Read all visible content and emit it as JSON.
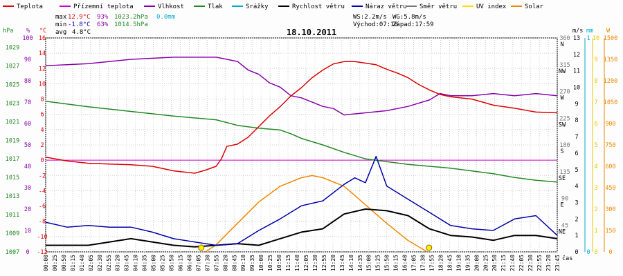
{
  "chart_data": {
    "type": "line",
    "title": "18.10.2011",
    "xlabel": "čas",
    "legend": [
      {
        "name": "Teplota",
        "color": "#dd0000"
      },
      {
        "name": "Přízemní teplota",
        "color": "#cc00cc"
      },
      {
        "name": "Vlhkost",
        "color": "#8800aa"
      },
      {
        "name": "Tlak",
        "color": "#228822"
      },
      {
        "name": "Srážky",
        "color": "#00aacc"
      },
      {
        "name": "Rychlost větru",
        "color": "#000000"
      },
      {
        "name": "Náraz větru",
        "color": "#0000aa"
      },
      {
        "name": "Směr větru",
        "color": "#777777"
      },
      {
        "name": "UV index",
        "color": "#ffdd00"
      },
      {
        "name": "Solar",
        "color": "#ee8800"
      }
    ],
    "stats": {
      "max": {
        "label": "max",
        "temp": "12.9°C",
        "hum": "93%",
        "press": "1023.2hPa",
        "rain": "0.0mm"
      },
      "min": {
        "label": "min",
        "temp": "-1.8°C",
        "hum": "63%",
        "press": "1014.5hPa"
      },
      "avg": {
        "label": "avg",
        "temp": "4.8°C"
      }
    },
    "wind_stats": {
      "ws": "WS:2.2m/s",
      "wg": "WG:5.8m/s",
      "sunrise": "Východ:07:18",
      "sunset": "Západ:17:59"
    },
    "axes": {
      "hPa": {
        "unit": "hPa",
        "ticks": [
          "1029",
          "1027",
          "1025",
          "1023",
          "1021",
          "1019",
          "1017",
          "1015",
          "1013",
          "1011",
          "1009",
          "1007"
        ],
        "range": [
          1007,
          1030
        ]
      },
      "pct": {
        "unit": "%",
        "ticks": [
          "100",
          "90",
          "80",
          "70",
          "60",
          "50",
          "40",
          "30",
          "20",
          "10",
          "0"
        ],
        "range": [
          0,
          100
        ]
      },
      "degC": {
        "unit": "°C",
        "ticks": [
          "16",
          "14",
          "12",
          "10",
          "8",
          "6",
          "4",
          "2",
          "0",
          "-2",
          "-4",
          "-6",
          "-8",
          "-10",
          "-12"
        ],
        "range": [
          -12,
          16
        ]
      },
      "dir": {
        "ticks": [
          "360",
          "315",
          "270",
          "225",
          "180",
          "135",
          "90",
          "45"
        ],
        "labels": [
          "N",
          "NW",
          "W",
          "SW",
          "S",
          "SE",
          "E",
          "NE"
        ],
        "range": [
          0,
          360
        ]
      },
      "ms": {
        "unit": "m/s",
        "ticks": [
          "13",
          "12",
          "11",
          "10",
          "9",
          "8",
          "7",
          "6",
          "5",
          "4",
          "3",
          "2",
          "1",
          "0"
        ],
        "range": [
          0,
          13
        ]
      },
      "mm": {
        "unit": "mm",
        "ticks": [
          "1",
          "0"
        ],
        "range": [
          0,
          1
        ]
      },
      "uv": {
        "ticks": [
          "10",
          "9",
          "8",
          "7",
          "6",
          "5",
          "4",
          "3",
          "2",
          "1",
          "0"
        ],
        "range": [
          0,
          10
        ]
      },
      "W": {
        "unit": "W",
        "ticks": [
          "1500",
          "1350",
          "1200",
          "1050",
          "900",
          "750",
          "600",
          "450",
          "300",
          "150",
          "0"
        ],
        "range": [
          0,
          1500
        ]
      }
    },
    "time_labels": [
      "00:00",
      "00:25",
      "00:50",
      "01:15",
      "01:40",
      "02:05",
      "02:30",
      "02:55",
      "03:20",
      "03:45",
      "04:10",
      "04:35",
      "05:00",
      "05:25",
      "05:50",
      "06:15",
      "06:40",
      "07:05",
      "07:30",
      "07:55",
      "08:20",
      "08:45",
      "09:10",
      "09:35",
      "10:00",
      "10:25",
      "10:50",
      "11:15",
      "11:40",
      "12:05",
      "12:30",
      "12:55",
      "13:20",
      "13:45",
      "14:10",
      "14:35",
      "15:00",
      "15:25",
      "15:50",
      "16:15",
      "16:40",
      "17:05",
      "17:30",
      "17:55",
      "18:20",
      "18:45",
      "19:10",
      "19:35",
      "20:00",
      "20:25",
      "20:50",
      "21:15",
      "21:40",
      "22:05",
      "22:30",
      "22:55",
      "23:20",
      "23:45"
    ],
    "series": [
      {
        "name": "Teplota",
        "unit": "°C",
        "x": [
          0,
          1,
          2,
          3,
          4,
          5,
          6,
          7,
          7.5,
          8,
          8.25,
          8.5,
          9,
          9.5,
          10,
          10.5,
          11,
          11.5,
          12,
          12.5,
          13,
          13.5,
          14,
          14.5,
          15,
          15.5,
          16,
          16.5,
          17,
          17.5,
          18,
          18.5,
          19,
          20,
          21,
          22,
          23,
          24
        ],
        "values": [
          0.4,
          -0.1,
          -0.4,
          -0.5,
          -0.6,
          -0.8,
          -1.4,
          -1.7,
          -1.3,
          -0.8,
          0.2,
          1.8,
          2.1,
          3.0,
          4.4,
          5.8,
          7.0,
          8.4,
          9.5,
          10.8,
          11.8,
          12.6,
          12.9,
          12.9,
          12.7,
          12.5,
          11.9,
          11.4,
          10.8,
          9.9,
          9.2,
          8.6,
          8.3,
          8.0,
          7.2,
          6.8,
          6.3,
          6.2
        ]
      },
      {
        "name": "Přízemní teplota",
        "unit": "°C",
        "x": [
          0,
          24
        ],
        "values": [
          0,
          0
        ]
      },
      {
        "name": "Vlhkost",
        "unit": "%",
        "x": [
          0,
          2,
          4,
          6,
          7,
          8,
          9,
          9.5,
          10,
          10.5,
          11,
          11.5,
          12,
          13,
          13.5,
          14,
          15,
          16,
          17,
          18,
          18.5,
          19,
          20,
          21,
          22,
          23,
          24
        ],
        "values": [
          87,
          88,
          90,
          91,
          91,
          91,
          89,
          85,
          83,
          79,
          77,
          73,
          72,
          68,
          67,
          64,
          65,
          66,
          68,
          71,
          74,
          73,
          73,
          74,
          73,
          74,
          73
        ]
      },
      {
        "name": "Tlak",
        "unit": "hPa",
        "x": [
          0,
          2,
          4,
          6,
          8,
          9,
          10,
          11,
          11.5,
          12,
          13,
          14,
          15,
          16,
          17,
          18,
          19,
          20,
          21,
          22,
          23,
          24
        ],
        "values": [
          1023.2,
          1022.6,
          1022.1,
          1021.6,
          1021.2,
          1020.6,
          1020.3,
          1020.1,
          1019.7,
          1019.2,
          1018.5,
          1017.7,
          1017.0,
          1016.7,
          1016.4,
          1016.2,
          1016.0,
          1015.7,
          1015.4,
          1015.0,
          1014.7,
          1014.5
        ]
      },
      {
        "name": "Rychlost větru",
        "unit": "m/s",
        "x": [
          0,
          2,
          4,
          6,
          7,
          8,
          9,
          10,
          11,
          12,
          13,
          14,
          15,
          16,
          17,
          18,
          19,
          20,
          21,
          22,
          23,
          24
        ],
        "values": [
          0.4,
          0.4,
          0.8,
          0.4,
          0.3,
          0.4,
          0.5,
          0.4,
          0.8,
          1.2,
          1.4,
          2.3,
          2.6,
          2.5,
          2.2,
          1.4,
          1.0,
          0.9,
          0.7,
          1.0,
          1.0,
          0.8
        ]
      },
      {
        "name": "Náraz větru",
        "unit": "m/s",
        "x": [
          0,
          1,
          2,
          3,
          4,
          5,
          6,
          7,
          8,
          9,
          10,
          11,
          12,
          13,
          14,
          14.5,
          15,
          15.5,
          16,
          17,
          18,
          19,
          20,
          21,
          22,
          23,
          24
        ],
        "values": [
          1.8,
          1.5,
          1.6,
          1.5,
          1.5,
          1.2,
          0.8,
          0.6,
          0.4,
          0.5,
          1.3,
          2.0,
          2.8,
          3.1,
          4.1,
          4.5,
          4.2,
          5.8,
          4.0,
          3.2,
          2.4,
          1.6,
          1.4,
          1.3,
          2.0,
          2.2,
          1.0
        ]
      },
      {
        "name": "Solar",
        "unit": "W",
        "x": [
          7.5,
          8,
          9,
          10,
          11,
          12,
          12.5,
          13,
          14,
          15,
          16,
          17,
          17.9
        ],
        "values": [
          0,
          50,
          200,
          350,
          460,
          520,
          535,
          520,
          460,
          330,
          200,
          80,
          0
        ]
      }
    ]
  }
}
